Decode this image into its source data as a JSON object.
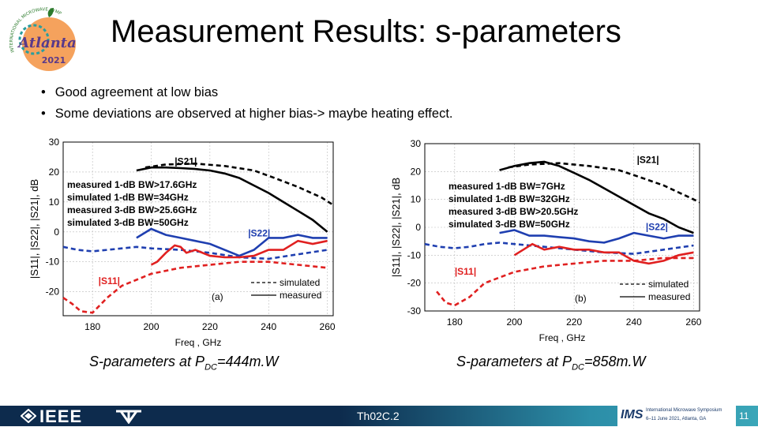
{
  "title": "Measurement Results: s-parameters",
  "logo": {
    "top_text": "INTERNATIONAL MICROWAVE SYMPOSIUM",
    "city": "Atlanta",
    "year": "2021"
  },
  "bullets": [
    "Good agreement at low bias",
    "Some deviations are observed at higher bias-> maybe heating effect."
  ],
  "captions": [
    {
      "pre": "S-parameters at P",
      "sub": "DC",
      "post": "=444m.W"
    },
    {
      "pre": "S-parameters at P",
      "sub": "DC",
      "post": "=858m.W"
    }
  ],
  "footer": {
    "ieee": "IEEE",
    "code": "Th02C.2",
    "ims_title": "International Microwave Symposium",
    "ims_dates": "6–11 June 2021, Atlanta, GA",
    "ims": "IMS",
    "page": "11"
  },
  "colors": {
    "s21": "#000000",
    "s22": "#1f3fb0",
    "s11": "#e02020",
    "footer": "#0d2b4d"
  },
  "chart_data": [
    {
      "type": "line",
      "panel": "(a)",
      "xlabel": "Freq , GHz",
      "ylabel": "|S11|, |S22|, |S21|, dB",
      "xlim": [
        170,
        262
      ],
      "ylim": [
        -28,
        30
      ],
      "xticks": [
        180,
        200,
        220,
        240,
        260
      ],
      "yticks": [
        30,
        20,
        10,
        0,
        -10,
        -20
      ],
      "trace_labels": {
        "s21": "|S21|",
        "s22": "|S22|",
        "s11": "|S11|"
      },
      "annotations": [
        "measured 1-dB BW>17.6GHz",
        "simulated 1-dB BW=34GHz",
        "measured 3-dB BW>25.6GHz",
        "simulated 3-dB BW=50GHz"
      ],
      "legend": [
        {
          "label": "simulated",
          "style": "dashed"
        },
        {
          "label": "measured",
          "style": "solid"
        }
      ],
      "series": [
        {
          "name": "S21 simulated",
          "param": "s21",
          "style": "dashed",
          "x": [
            198,
            205,
            215,
            225,
            235,
            242,
            250,
            258,
            262
          ],
          "y": [
            21.5,
            22.5,
            22.8,
            22,
            20.5,
            18,
            15,
            11.5,
            9
          ]
        },
        {
          "name": "S21 measured",
          "param": "s21",
          "style": "solid",
          "x": [
            195,
            200,
            205,
            210,
            215,
            220,
            225,
            230,
            235,
            240,
            245,
            250,
            255,
            260
          ],
          "y": [
            20.5,
            21.5,
            21.5,
            21.3,
            21,
            20.5,
            19.5,
            18,
            15.5,
            13,
            10,
            7,
            4,
            0
          ]
        },
        {
          "name": "S22 simulated",
          "param": "s22",
          "style": "dashed",
          "x": [
            170,
            175,
            180,
            185,
            190,
            195,
            200,
            210,
            220,
            230,
            240,
            250,
            260
          ],
          "y": [
            -5,
            -6,
            -6.5,
            -6,
            -5.5,
            -5,
            -5.5,
            -6,
            -7,
            -8.5,
            -9,
            -7.5,
            -6
          ]
        },
        {
          "name": "S22 measured",
          "param": "s22",
          "style": "solid",
          "x": [
            195,
            200,
            205,
            210,
            215,
            220,
            225,
            230,
            235,
            240,
            245,
            250,
            255,
            260
          ],
          "y": [
            -2,
            1,
            -1,
            -2,
            -3,
            -4,
            -6,
            -8,
            -6,
            -2,
            -2,
            -1,
            -2,
            -2
          ]
        },
        {
          "name": "S11 simulated",
          "param": "s11",
          "style": "dashed",
          "x": [
            170,
            173,
            176,
            180,
            185,
            190,
            195,
            200,
            210,
            220,
            230,
            240,
            250,
            260
          ],
          "y": [
            -22,
            -24,
            -26.5,
            -27,
            -22,
            -18,
            -16,
            -14,
            -12,
            -11,
            -10,
            -10,
            -11,
            -12
          ]
        },
        {
          "name": "S11 measured",
          "param": "s11",
          "style": "solid",
          "x": [
            200,
            202,
            205,
            208,
            210,
            212,
            215,
            220,
            225,
            230,
            235,
            240,
            245,
            250,
            255,
            260
          ],
          "y": [
            -11,
            -10,
            -7,
            -4.5,
            -5,
            -7,
            -6,
            -8,
            -8.5,
            -8.5,
            -8,
            -6,
            -6,
            -3,
            -4,
            -3
          ]
        }
      ]
    },
    {
      "type": "line",
      "panel": "(b)",
      "xlabel": "Freq , GHz",
      "ylabel": "|S11|, |S22|, |S21|, dB",
      "xlim": [
        170,
        262
      ],
      "ylim": [
        -30,
        30
      ],
      "xticks": [
        180,
        200,
        220,
        240,
        260
      ],
      "yticks": [
        30,
        20,
        10,
        0,
        -10,
        -20,
        -30
      ],
      "trace_labels": {
        "s21": "|S21|",
        "s22": "|S22|",
        "s11": "|S11|"
      },
      "annotations": [
        "measured 1-dB BW=7GHz",
        "simulated 1-dB BW=32GHz",
        "measured 3-dB BW>20.5GHz",
        "simulated 3-dB BW=50GHz"
      ],
      "legend": [
        {
          "label": "simulated",
          "style": "dashed"
        },
        {
          "label": "measured",
          "style": "solid"
        }
      ],
      "series": [
        {
          "name": "S21 simulated",
          "param": "s21",
          "style": "dashed",
          "x": [
            198,
            205,
            215,
            225,
            235,
            242,
            250,
            258,
            262
          ],
          "y": [
            21.5,
            22.5,
            23,
            22,
            20.5,
            18,
            15,
            11,
            9
          ]
        },
        {
          "name": "S21 measured",
          "param": "s21",
          "style": "solid",
          "x": [
            195,
            200,
            205,
            210,
            215,
            220,
            225,
            230,
            235,
            240,
            245,
            250,
            255,
            260
          ],
          "y": [
            20.5,
            22,
            23,
            23.5,
            22,
            19.5,
            17,
            14,
            11,
            8,
            5,
            3,
            0,
            -2
          ]
        },
        {
          "name": "S22 simulated",
          "param": "s22",
          "style": "dashed",
          "x": [
            170,
            175,
            180,
            185,
            190,
            195,
            200,
            210,
            220,
            230,
            240,
            250,
            260
          ],
          "y": [
            -6,
            -7,
            -7.5,
            -7,
            -6,
            -5.5,
            -6,
            -7,
            -8,
            -9,
            -9.5,
            -8,
            -6.5
          ]
        },
        {
          "name": "S22 measured",
          "param": "s22",
          "style": "solid",
          "x": [
            195,
            200,
            205,
            210,
            215,
            220,
            225,
            230,
            235,
            240,
            245,
            250,
            255,
            260
          ],
          "y": [
            -2,
            -1,
            -3,
            -3,
            -3.5,
            -4,
            -5,
            -5.5,
            -4,
            -2,
            -3,
            -4,
            -3,
            -3
          ]
        },
        {
          "name": "S11 simulated",
          "param": "s11",
          "style": "dashed",
          "x": [
            174,
            177,
            180,
            185,
            190,
            195,
            200,
            210,
            220,
            230,
            240,
            250,
            260
          ],
          "y": [
            -23,
            -27,
            -28,
            -25,
            -20,
            -18,
            -16,
            -14,
            -13,
            -12,
            -12,
            -11,
            -11
          ]
        },
        {
          "name": "S11 measured",
          "param": "s11",
          "style": "solid",
          "x": [
            200,
            203,
            206,
            210,
            215,
            220,
            225,
            230,
            235,
            240,
            245,
            250,
            255,
            260
          ],
          "y": [
            -10,
            -8,
            -6,
            -8,
            -7,
            -8,
            -8,
            -9,
            -9,
            -12,
            -13,
            -12,
            -10,
            -9
          ]
        }
      ]
    }
  ]
}
